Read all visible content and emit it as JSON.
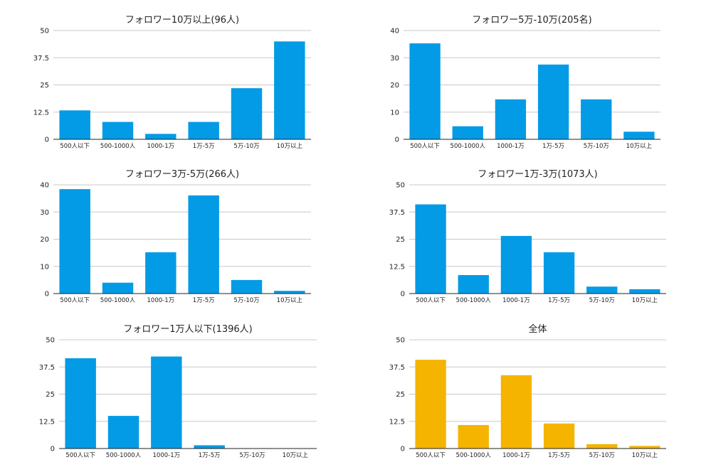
{
  "colors": {
    "primary": "#039BE5",
    "highlight": "#F4B400"
  },
  "chart_data": [
    {
      "type": "bar",
      "title": "フォロワー10万以上(96人)",
      "categories": [
        "500人以下",
        "500-1000人",
        "1000-1万",
        "1万-5万",
        "5万-10万",
        "10万以上"
      ],
      "values": [
        13.3,
        8,
        2.5,
        8,
        23.5,
        45
      ],
      "ylim": [
        0,
        50
      ],
      "yticks": [
        "0",
        "12.5",
        "25",
        "37.5",
        "50"
      ],
      "color": "#039BE5",
      "grid": true
    },
    {
      "type": "bar",
      "title": "フォロワー5万-10万(205名)",
      "categories": [
        "500人以下",
        "500-1000人",
        "1000-1万",
        "1万-5万",
        "5万-10万",
        "10万以上"
      ],
      "values": [
        35.3,
        4.8,
        14.7,
        27.5,
        14.7,
        2.8
      ],
      "ylim": [
        0,
        40
      ],
      "yticks": [
        "0",
        "10",
        "20",
        "30",
        "40"
      ],
      "color": "#039BE5",
      "grid": true
    },
    {
      "type": "bar",
      "title": "フォロワー3万-5万(266人)",
      "categories": [
        "500人以下",
        "500-1000人",
        "1000-1万",
        "1万-5万",
        "5万-10万",
        "10万以上"
      ],
      "values": [
        38.4,
        4,
        15.2,
        36.1,
        5,
        1
      ],
      "ylim": [
        0,
        40
      ],
      "yticks": [
        "0",
        "10",
        "20",
        "30",
        "40"
      ],
      "color": "#039BE5",
      "grid": true
    },
    {
      "type": "bar",
      "title": "フォロワー1万-3万(1073人)",
      "categories": [
        "500人以下",
        "500-1000人",
        "1000-1万",
        "1万-5万",
        "5万-10万",
        "10万以上"
      ],
      "values": [
        41,
        8.5,
        26.5,
        19,
        3.2,
        2
      ],
      "ylim": [
        0,
        50
      ],
      "yticks": [
        "0",
        "12.5",
        "25",
        "37.5",
        "50"
      ],
      "color": "#039BE5",
      "grid": true
    },
    {
      "type": "bar",
      "title": "フォロワー1万人以下(1396人)",
      "categories": [
        "500人以下",
        "500-1000人",
        "1000-1万",
        "1万-5万",
        "5万-10万",
        "10万以上"
      ],
      "values": [
        41.5,
        15,
        42.3,
        1.5,
        0,
        0
      ],
      "ylim": [
        0,
        50
      ],
      "yticks": [
        "0",
        "12.5",
        "25",
        "37.5",
        "50"
      ],
      "color": "#039BE5",
      "grid": true
    },
    {
      "type": "bar",
      "title": "全体",
      "categories": [
        "500人以下",
        "500-1000人",
        "1000-1万",
        "1万-5万",
        "5万-10万",
        "10万以上"
      ],
      "values": [
        40.8,
        10.8,
        33.7,
        11.5,
        2,
        1.2
      ],
      "ylim": [
        0,
        50
      ],
      "yticks": [
        "0",
        "12.5",
        "25",
        "37.5",
        "50"
      ],
      "color": "#F4B400",
      "grid": true
    }
  ]
}
